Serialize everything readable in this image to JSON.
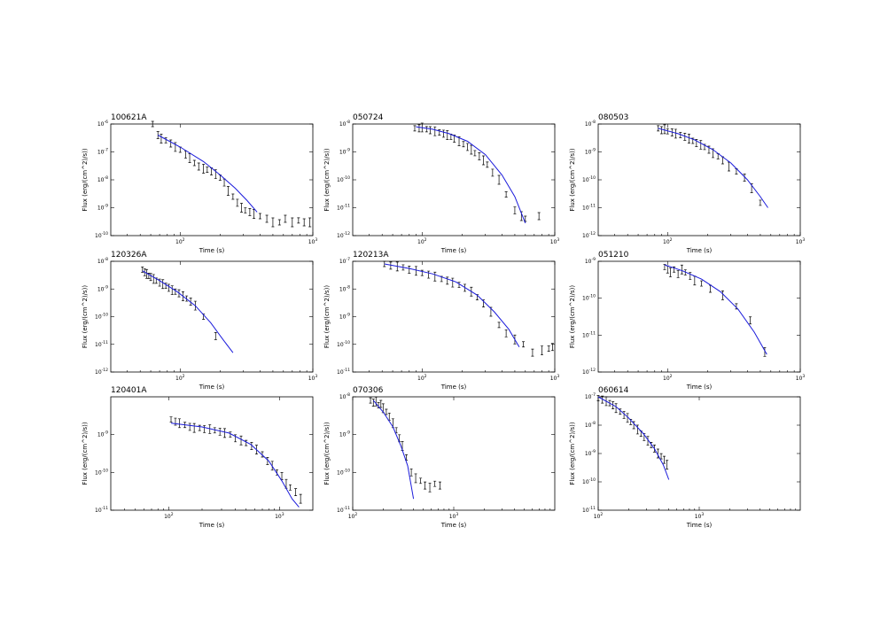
{
  "chart_data": [
    {
      "type": "scatter",
      "title": "100621A",
      "xlabel": "Time (s)",
      "ylabel": "Flux (erg/(cm^2)/s))",
      "xscale": "log",
      "yscale": "log",
      "xlim": [
        30,
        1000
      ],
      "ylim": [
        1e-10,
        1e-06
      ],
      "x_ticks": [
        "10^2",
        "10^3"
      ],
      "y_ticks": [
        "10^-6",
        "10^-7",
        "10^-8",
        "10^-9",
        "10^-10"
      ],
      "series": [
        {
          "kind": "data",
          "x": [
            62,
            68,
            72,
            78,
            85,
            92,
            100,
            110,
            118,
            128,
            138,
            150,
            160,
            172,
            185,
            200,
            215,
            230,
            250,
            270,
            290,
            310,
            335,
            360,
            400,
            450,
            500,
            560,
            620,
            700,
            780,
            860,
            950
          ],
          "y": [
            1e-06,
            4e-07,
            3e-07,
            2.6e-07,
            2e-07,
            1.5e-07,
            1.2e-07,
            8e-08,
            6e-08,
            4e-08,
            3e-08,
            2.5e-08,
            2.3e-08,
            2e-08,
            1.6e-08,
            1.2e-08,
            8e-09,
            4e-09,
            2.5e-09,
            1.5e-09,
            1e-09,
            8e-10,
            7e-10,
            6e-10,
            5e-10,
            4e-10,
            3e-10,
            3e-10,
            4e-10,
            3e-10,
            3.5e-10,
            3e-10,
            3e-10
          ]
        },
        {
          "kind": "model",
          "x": [
            68,
            100,
            150,
            200,
            260,
            320,
            380
          ],
          "y": [
            4e-07,
            1.5e-07,
            4.5e-08,
            1.5e-08,
            5e-09,
            1.8e-09,
            7e-10
          ]
        }
      ]
    },
    {
      "type": "scatter",
      "title": "050724",
      "xlabel": "Time (s)",
      "ylabel": "Flux (erg/(cm^2)/s))",
      "xscale": "log",
      "yscale": "log",
      "xlim": [
        30,
        1000
      ],
      "ylim": [
        1e-12,
        1e-08
      ],
      "x_ticks": [
        "10^2",
        "10^3"
      ],
      "y_ticks": [
        "10^-8",
        "10^-9",
        "10^-10",
        "10^-11",
        "10^-12"
      ],
      "series": [
        {
          "kind": "data",
          "x": [
            88,
            95,
            100,
            108,
            115,
            125,
            135,
            145,
            155,
            165,
            175,
            190,
            205,
            220,
            235,
            250,
            270,
            290,
            310,
            340,
            380,
            430,
            500,
            560,
            600,
            760
          ],
          "y": [
            7e-09,
            7e-09,
            7.5e-09,
            6.5e-09,
            6e-09,
            5.5e-09,
            5e-09,
            4.5e-09,
            4e-09,
            3.5e-09,
            3e-09,
            2.4e-09,
            1.9e-09,
            1.5e-09,
            1.2e-09,
            9e-10,
            7e-10,
            5e-10,
            3.5e-10,
            1.8e-10,
            1e-10,
            3e-11,
            8e-12,
            5e-12,
            4e-12,
            5e-12
          ]
        },
        {
          "kind": "model",
          "x": [
            90,
            120,
            160,
            220,
            300,
            400,
            500,
            600
          ],
          "y": [
            8e-09,
            6.5e-09,
            4.5e-09,
            2.4e-09,
            8e-10,
            1.5e-10,
            2.5e-11,
            2.8e-12
          ]
        }
      ]
    },
    {
      "type": "scatter",
      "title": "080503",
      "xlabel": "Time (s)",
      "ylabel": "Flux (erg/(cm^2)/s))",
      "xscale": "log",
      "yscale": "log",
      "xlim": [
        30,
        1000
      ],
      "ylim": [
        1e-12,
        1e-08
      ],
      "x_ticks": [
        "10^2",
        "10^3"
      ],
      "y_ticks": [
        "10^-8",
        "10^-9",
        "10^-10",
        "10^-11",
        "10^-12"
      ],
      "series": [
        {
          "kind": "data",
          "x": [
            85,
            90,
            95,
            100,
            108,
            115,
            125,
            135,
            145,
            155,
            165,
            178,
            190,
            205,
            220,
            240,
            260,
            290,
            330,
            380,
            430,
            500
          ],
          "y": [
            7e-09,
            6e-09,
            6.5e-09,
            5.5e-09,
            5e-09,
            4.5e-09,
            4e-09,
            3.5e-09,
            3e-09,
            2.5e-09,
            2.1e-09,
            1.8e-09,
            1.5e-09,
            1.2e-09,
            9e-10,
            7e-10,
            5e-10,
            3e-10,
            2e-10,
            1.2e-10,
            5e-11,
            1.5e-11
          ]
        },
        {
          "kind": "model",
          "x": [
            85,
            120,
            160,
            220,
            300,
            400,
            500,
            570
          ],
          "y": [
            7e-09,
            4.5e-09,
            2.7e-09,
            1.2e-09,
            4e-10,
            1e-10,
            2.5e-11,
            1e-11
          ]
        }
      ]
    },
    {
      "type": "scatter",
      "title": "120326A",
      "xlabel": "Time (s)",
      "ylabel": "Flux (erg/(cm^2)/s))",
      "xscale": "log",
      "yscale": "log",
      "xlim": [
        30,
        1000
      ],
      "ylim": [
        1e-12,
        1e-08
      ],
      "x_ticks": [
        "10^2",
        "10^3"
      ],
      "y_ticks": [
        "10^-8",
        "10^-9",
        "10^-10",
        "10^-11",
        "10^-12"
      ],
      "series": [
        {
          "kind": "data",
          "x": [
            52,
            54,
            56,
            58,
            60,
            63,
            66,
            70,
            74,
            78,
            82,
            87,
            92,
            98,
            105,
            112,
            120,
            130,
            150,
            185
          ],
          "y": [
            5e-09,
            4e-09,
            3.5e-09,
            3e-09,
            2.7e-09,
            2.3e-09,
            2e-09,
            1.7e-09,
            1.5e-09,
            1.3e-09,
            1.1e-09,
            9e-10,
            8e-10,
            7e-10,
            5.5e-10,
            4.5e-10,
            3.5e-10,
            2.5e-10,
            1e-10,
            2e-11
          ]
        },
        {
          "kind": "model",
          "x": [
            52,
            70,
            95,
            130,
            170,
            210,
            250
          ],
          "y": [
            4.5e-09,
            2e-09,
            8e-10,
            2.5e-10,
            6e-11,
            1.5e-11,
            5e-12
          ]
        }
      ]
    },
    {
      "type": "scatter",
      "title": "120213A",
      "xlabel": "Time (s)",
      "ylabel": "Flux (erg/(cm^2)/s))",
      "xscale": "log",
      "yscale": "log",
      "xlim": [
        30,
        1000
      ],
      "ylim": [
        1e-11,
        1e-07
      ],
      "x_ticks": [
        "10^2",
        "10^3"
      ],
      "y_ticks": [
        "10^-7",
        "10^-8",
        "10^-9",
        "10^-10",
        "10^-11"
      ],
      "series": [
        {
          "kind": "data",
          "x": [
            52,
            58,
            65,
            72,
            80,
            90,
            100,
            112,
            125,
            140,
            155,
            170,
            190,
            210,
            235,
            260,
            290,
            330,
            380,
            430,
            500,
            580,
            680,
            800,
            900,
            960
          ],
          "y": [
            8e-08,
            7e-08,
            6.5e-08,
            6e-08,
            5e-08,
            4.5e-08,
            3.8e-08,
            3.3e-08,
            2.8e-08,
            2.3e-08,
            2e-08,
            1.7e-08,
            1.4e-08,
            1.1e-08,
            8e-09,
            5e-09,
            3e-09,
            1.5e-09,
            5e-10,
            2.5e-10,
            1.5e-10,
            1e-10,
            5e-11,
            6e-11,
            7e-11,
            8e-11
          ]
        },
        {
          "kind": "model",
          "x": [
            52,
            80,
            120,
            180,
            260,
            350,
            450,
            540
          ],
          "y": [
            8e-08,
            5.5e-08,
            3.5e-08,
            1.8e-08,
            6e-09,
            1.5e-09,
            3.5e-10,
            8e-11
          ]
        }
      ]
    },
    {
      "type": "scatter",
      "title": "051210",
      "xlabel": "Time (s)",
      "ylabel": "Flux (erg/(cm^2)/s))",
      "xscale": "log",
      "yscale": "log",
      "xlim": [
        30,
        1000
      ],
      "ylim": [
        1e-12,
        1e-09
      ],
      "x_ticks": [
        "10^2",
        "10^3"
      ],
      "y_ticks": [
        "10^-9",
        "10^-10",
        "10^-11",
        "10^-12"
      ],
      "series": [
        {
          "kind": "data",
          "x": [
            95,
            100,
            105,
            112,
            120,
            128,
            136,
            148,
            160,
            180,
            210,
            260,
            330,
            420,
            540
          ],
          "y": [
            7e-10,
            6e-10,
            5e-10,
            6e-10,
            4.5e-10,
            6e-10,
            5e-10,
            4e-10,
            3e-10,
            2.5e-10,
            1.8e-10,
            1.2e-10,
            6e-11,
            2.5e-11,
            3.5e-12
          ]
        },
        {
          "kind": "model",
          "x": [
            95,
            130,
            180,
            250,
            340,
            450,
            560
          ],
          "y": [
            8e-10,
            5.5e-10,
            3.3e-10,
            1.5e-10,
            5e-11,
            1.2e-11,
            3e-12
          ]
        }
      ]
    },
    {
      "type": "scatter",
      "title": "120401A",
      "xlabel": "Time (s)",
      "ylabel": "Flux (erg/(cm^2)/s))",
      "xscale": "log",
      "yscale": "log",
      "xlim": [
        30,
        2000
      ],
      "ylim": [
        1e-11,
        1e-08
      ],
      "x_ticks": [
        "10^2",
        "10^3"
      ],
      "y_ticks": [
        "10^-9",
        "10^-10",
        "10^-11"
      ],
      "series": [
        {
          "kind": "data",
          "x": [
            105,
            115,
            125,
            140,
            155,
            170,
            190,
            210,
            235,
            260,
            290,
            320,
            360,
            400,
            450,
            500,
            560,
            620,
            700,
            780,
            860,
            950,
            1050,
            1150,
            1250,
            1400,
            1550
          ],
          "y": [
            2.5e-09,
            2.2e-09,
            2e-09,
            1.8e-09,
            1.6e-09,
            1.5e-09,
            1.5e-09,
            1.4e-09,
            1.4e-09,
            1.3e-09,
            1.2e-09,
            1.1e-09,
            1e-09,
            8e-10,
            7e-10,
            6e-10,
            5e-10,
            4e-10,
            3e-10,
            2e-10,
            1.5e-10,
            1e-10,
            8e-11,
            5e-11,
            4e-11,
            3e-11,
            2e-11
          ]
        },
        {
          "kind": "model",
          "x": [
            105,
            200,
            350,
            550,
            800,
            1050,
            1300,
            1500
          ],
          "y": [
            2e-09,
            1.6e-09,
            1.1e-09,
            5.5e-10,
            2e-10,
            6e-11,
            2e-11,
            1.2e-11
          ]
        }
      ]
    },
    {
      "type": "scatter",
      "title": "070306",
      "xlabel": "Time (s)",
      "ylabel": "Flux (erg/(cm^2)/s))",
      "xscale": "log",
      "yscale": "log",
      "xlim": [
        100,
        10000
      ],
      "ylim": [
        1e-11,
        1e-08
      ],
      "x_ticks": [
        "10^2",
        "10^3"
      ],
      "y_ticks": [
        "10^-8",
        "10^-9",
        "10^-10",
        "10^-11"
      ],
      "series": [
        {
          "kind": "data",
          "x": [
            150,
            160,
            170,
            180,
            190,
            200,
            215,
            230,
            250,
            270,
            290,
            310,
            340,
            380,
            420,
            470,
            520,
            580,
            650,
            730
          ],
          "y": [
            8e-09,
            7e-09,
            7.5e-09,
            6e-09,
            6.5e-09,
            5e-09,
            4e-09,
            3e-09,
            2e-09,
            1.3e-09,
            8e-10,
            5e-10,
            2.5e-10,
            1e-10,
            7e-11,
            6e-11,
            4.5e-11,
            4e-11,
            5e-11,
            4.5e-11
          ]
        },
        {
          "kind": "model",
          "x": [
            160,
            200,
            250,
            300,
            350,
            400
          ],
          "y": [
            8e-09,
            4e-09,
            1.6e-09,
            5e-10,
            1.5e-10,
            2e-11
          ]
        }
      ]
    },
    {
      "type": "scatter",
      "title": "060614",
      "xlabel": "Time (s)",
      "ylabel": "Flux (erg/(cm^2)/s))",
      "xscale": "log",
      "yscale": "log",
      "xlim": [
        100,
        10000
      ],
      "ylim": [
        1e-11,
        1e-07
      ],
      "x_ticks": [
        "10^2",
        "10^3"
      ],
      "y_ticks": [
        "10^-7",
        "10^-8",
        "10^-9",
        "10^-10",
        "10^-11"
      ],
      "series": [
        {
          "kind": "data",
          "x": [
            100,
            110,
            120,
            130,
            140,
            150,
            165,
            180,
            195,
            210,
            225,
            245,
            265,
            285,
            310,
            335,
            360,
            390,
            420,
            450,
            480
          ],
          "y": [
            9e-08,
            8e-08,
            7e-08,
            6e-08,
            5e-08,
            4e-08,
            3e-08,
            2.3e-08,
            1.8e-08,
            1.3e-08,
            1e-08,
            7e-09,
            5e-09,
            3.8e-09,
            2.8e-09,
            2e-09,
            1.5e-09,
            1e-09,
            8e-10,
            6e-10,
            4e-10
          ]
        },
        {
          "kind": "model",
          "x": [
            100,
            150,
            200,
            280,
            360,
            440,
            500
          ],
          "y": [
            1e-07,
            4.5e-08,
            1.8e-08,
            5e-09,
            1.5e-09,
            4e-10,
            1.2e-10
          ]
        }
      ]
    }
  ],
  "colors": {
    "data": "#000000",
    "model": "#1a1adb",
    "axis": "#000000",
    "background": "#ffffff"
  }
}
